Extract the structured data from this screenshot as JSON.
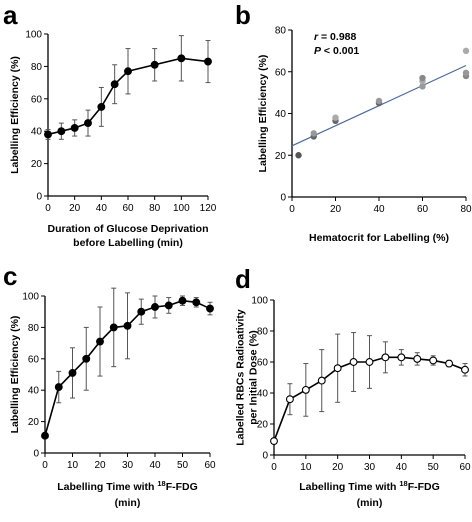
{
  "chart_data": [
    {
      "panel": "a",
      "type": "line",
      "xlabel": "Duration of Glucose Deprivation\nbefore Labelling (min)",
      "ylabel": "Labelling Efficiency (%)",
      "xlim": [
        0,
        120
      ],
      "ylim": [
        0,
        100
      ],
      "xticks": [
        0,
        20,
        40,
        60,
        80,
        100,
        120
      ],
      "yticks": [
        0,
        20,
        40,
        60,
        80,
        100
      ],
      "grid": false,
      "marker": "filled-circle",
      "series": [
        {
          "x": [
            0,
            10,
            20,
            30,
            40,
            50,
            60,
            80,
            100,
            120
          ],
          "y": [
            38,
            40,
            42,
            45,
            55,
            69,
            77,
            81,
            85,
            83
          ],
          "err": [
            3,
            5,
            5,
            8,
            12,
            12,
            14,
            10,
            14,
            13
          ]
        }
      ]
    },
    {
      "panel": "b",
      "type": "scatter",
      "xlabel": "Hematocrit for Labelling (%)",
      "ylabel": "Labelling Efficiency (%)",
      "xlim": [
        0,
        80
      ],
      "ylim": [
        0,
        80
      ],
      "xticks": [
        0,
        20,
        40,
        60,
        80
      ],
      "yticks": [
        0,
        20,
        40,
        60,
        80
      ],
      "grid": false,
      "annotations": [
        "r = 0.988",
        "P < 0.001"
      ],
      "trendline": {
        "x": [
          0,
          80
        ],
        "y": [
          24.5,
          63
        ],
        "color": "#4a6a9c"
      },
      "points": [
        {
          "x": 3,
          "y": 20,
          "color": "#555555"
        },
        {
          "x": 10,
          "y": 29,
          "color": "#666666"
        },
        {
          "x": 10,
          "y": 30.5,
          "color": "#999999"
        },
        {
          "x": 20,
          "y": 36.5,
          "color": "#666666"
        },
        {
          "x": 20,
          "y": 38,
          "color": "#aaaaaa"
        },
        {
          "x": 40,
          "y": 45,
          "color": "#666666"
        },
        {
          "x": 40,
          "y": 46,
          "color": "#999999"
        },
        {
          "x": 60,
          "y": 53,
          "color": "#999999"
        },
        {
          "x": 60,
          "y": 55.5,
          "color": "#aaaaaa"
        },
        {
          "x": 60,
          "y": 57,
          "color": "#888888"
        },
        {
          "x": 80,
          "y": 58,
          "color": "#888888"
        },
        {
          "x": 80,
          "y": 59.5,
          "color": "#999999"
        },
        {
          "x": 80,
          "y": 70,
          "color": "#aaaaaa"
        }
      ]
    },
    {
      "panel": "c",
      "type": "line",
      "xlabel_parts": [
        "Labelling Time with ",
        "18",
        "F-FDG",
        "(min)"
      ],
      "ylabel": "Labelling Efficiency (%)",
      "xlim": [
        0,
        60
      ],
      "ylim": [
        0,
        100
      ],
      "xticks": [
        0,
        10,
        20,
        30,
        40,
        50,
        60
      ],
      "yticks": [
        0,
        20,
        40,
        60,
        80,
        100
      ],
      "grid": false,
      "marker": "filled-circle",
      "series": [
        {
          "x": [
            0,
            5,
            10,
            15,
            20,
            25,
            30,
            35,
            40,
            45,
            50,
            55,
            60
          ],
          "y": [
            11,
            42,
            51,
            60,
            71,
            80,
            81,
            90,
            93,
            94,
            97,
            96,
            92
          ],
          "err": [
            0,
            10,
            16,
            20,
            22,
            25,
            21,
            8,
            7,
            5,
            3,
            3,
            4
          ]
        }
      ]
    },
    {
      "panel": "d",
      "type": "line",
      "xlabel_parts": [
        "Labelling Time with ",
        "18",
        "F-FDG",
        "(min)"
      ],
      "ylabel": "Labelled RBCs Radioativity\nper Initial Dose (%)",
      "xlim": [
        0,
        60
      ],
      "ylim": [
        0,
        100
      ],
      "xticks": [
        0,
        10,
        20,
        30,
        40,
        50,
        60
      ],
      "yticks": [
        0,
        20,
        40,
        60,
        80,
        100
      ],
      "grid": false,
      "marker": "open-circle",
      "series": [
        {
          "x": [
            0,
            5,
            10,
            15,
            20,
            25,
            30,
            35,
            40,
            45,
            50,
            55,
            60
          ],
          "y": [
            9,
            36,
            42,
            48,
            56,
            60,
            60,
            63,
            63,
            62,
            61,
            59,
            55
          ],
          "err": [
            0,
            10,
            17,
            20,
            22,
            19,
            17,
            10,
            5,
            4,
            3,
            2,
            4
          ]
        }
      ]
    }
  ]
}
